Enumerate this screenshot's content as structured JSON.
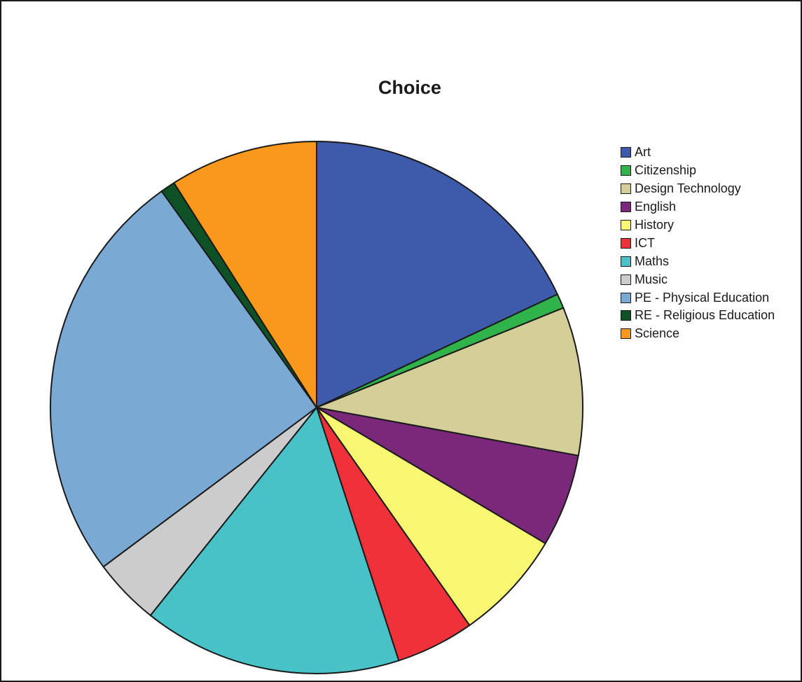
{
  "chart_data": {
    "type": "pie",
    "title": "Choice",
    "legend_position": "right",
    "slices": [
      {
        "label": "Art",
        "value": 18.2,
        "color": "#3e5aab"
      },
      {
        "label": "Citizenship",
        "value": 0.9,
        "color": "#2fb34a"
      },
      {
        "label": "Design Technology",
        "value": 9.1,
        "color": "#d4ce98"
      },
      {
        "label": "English",
        "value": 5.7,
        "color": "#7b287b"
      },
      {
        "label": "History",
        "value": 6.8,
        "color": "#f9f671"
      },
      {
        "label": "ICT",
        "value": 4.8,
        "color": "#ef3239"
      },
      {
        "label": "Maths",
        "value": 15.9,
        "color": "#48c2c6"
      },
      {
        "label": "Music",
        "value": 4.1,
        "color": "#cccccc"
      },
      {
        "label": "PE - Physical Education",
        "value": 25.6,
        "color": "#7aa9d4"
      },
      {
        "label": "RE - Religious Education",
        "value": 0.9,
        "color": "#0f5126"
      },
      {
        "label": "Science",
        "value": 9.1,
        "color": "#f8991e"
      }
    ]
  }
}
